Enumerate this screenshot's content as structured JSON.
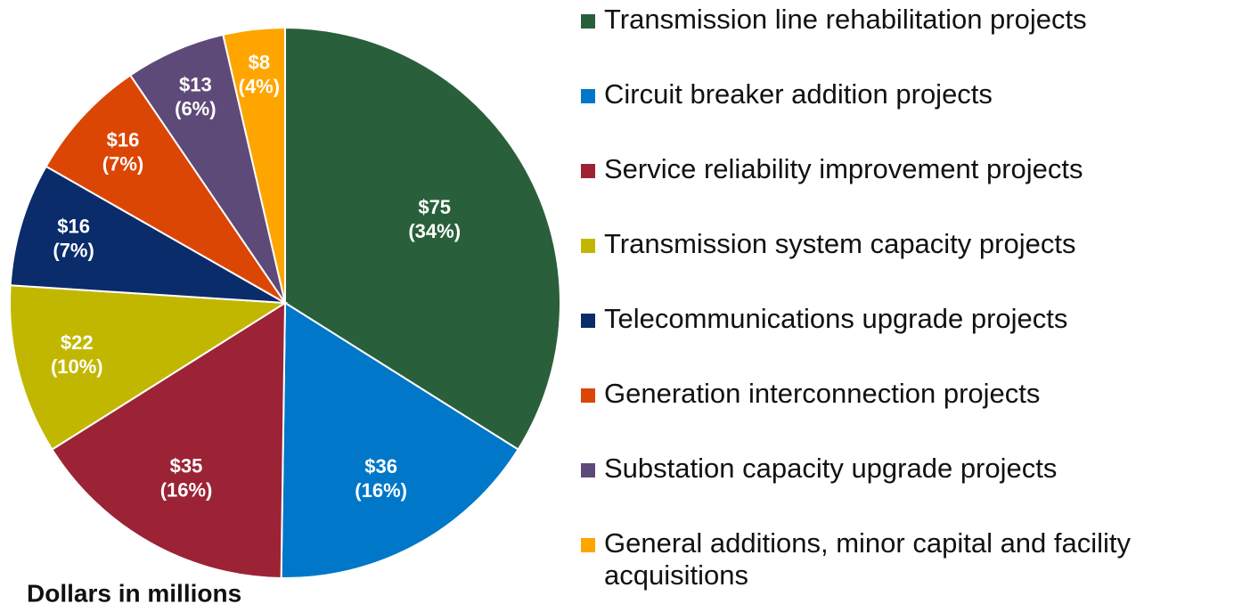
{
  "chart_data": {
    "type": "pie",
    "note": "Dollars in millions",
    "categories": [
      "Transmission line rehabilitation projects",
      "Circuit breaker addition projects",
      "Service reliability improvement projects",
      "Transmission system capacity projects",
      "Telecommunications upgrade projects",
      "Generation interconnection projects",
      "Substation capacity upgrade projects",
      "General additions, minor capital and facility acquisitions"
    ],
    "values": [
      75,
      36,
      35,
      22,
      16,
      16,
      13,
      8
    ],
    "value_labels": [
      "$75",
      "$36",
      "$35",
      "$22",
      "$16",
      "$16",
      "$13",
      "$8"
    ],
    "percents": [
      34,
      16,
      16,
      10,
      7,
      7,
      6,
      4
    ],
    "percent_labels": [
      "(34%)",
      "(16%)",
      "(16%)",
      "(10%)",
      "(7%)",
      "(7%)",
      "(6%)",
      "(4%)"
    ],
    "colors": [
      "#2a5f3b",
      "#0077c8",
      "#9b2335",
      "#c2b700",
      "#0a2c6b",
      "#dc4605",
      "#5e4a78",
      "#ffa500"
    ],
    "legend": "right"
  }
}
